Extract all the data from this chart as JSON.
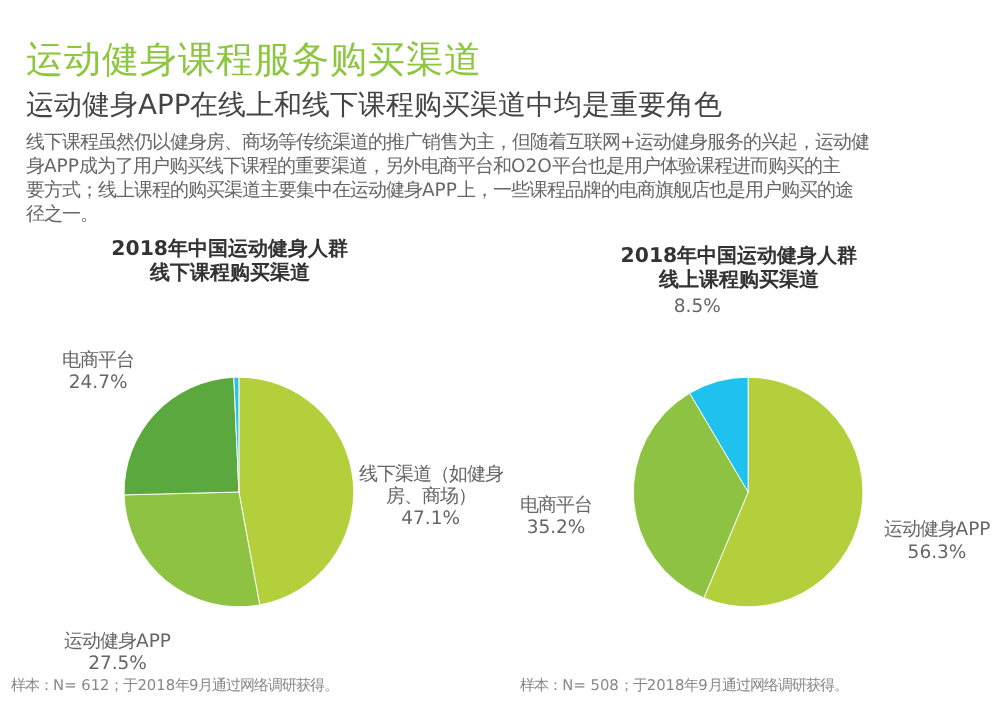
{
  "chart_data": [
    {
      "type": "other",
      "title": "运动健身课程服务购买渠道",
      "subtitle": "运动健身APP在线上和线下课程购买渠道中均是重要角色",
      "annotations": [
        "线下课程虽然仍以健身房、商场等传统渠道的推广销售为主，但随着互联网+运动健身服务的兴起，运动健身APP成为了用户购买线下课程的重要渠道，另外电商平台和O2O平台也是用户体验课程进而购买的主要方式；线上课程的购买渠道主要集中在运动健身APP上，一些课程品牌的电商旗舰店也是用户购买的途径之一。"
      ]
    },
    {
      "type": "pie",
      "title": "2018年中国运动健身人群线下课程购买渠道",
      "categories": [
        "线下渠道（如健身房、商场）",
        "运动健身APP",
        "电商平台",
        null
      ],
      "values": [
        47.1,
        27.5,
        24.7,
        0.7
      ],
      "value_labels": [
        "47.1%",
        "27.5%",
        "24.7%",
        null
      ],
      "colors": [
        "#b3cf3b",
        "#8dc242",
        "#5ba83e",
        "#29c3e8"
      ],
      "annotations": [
        "样本：N= 612；于2018年9月通过网络调研获得。"
      ]
    },
    {
      "type": "pie",
      "title": "2018年中国运动健身人群线上课程购买渠道",
      "categories": [
        "运动健身APP",
        "电商平台",
        null
      ],
      "values": [
        56.3,
        35.2,
        8.5
      ],
      "value_labels": [
        "56.3%",
        "35.2%",
        "8.5%"
      ],
      "colors": [
        "#b3cf3b",
        "#8dc242",
        "#1fc1ee"
      ],
      "annotations": [
        "样本：N= 508；于2018年9月通过网络调研获得。"
      ]
    }
  ]
}
